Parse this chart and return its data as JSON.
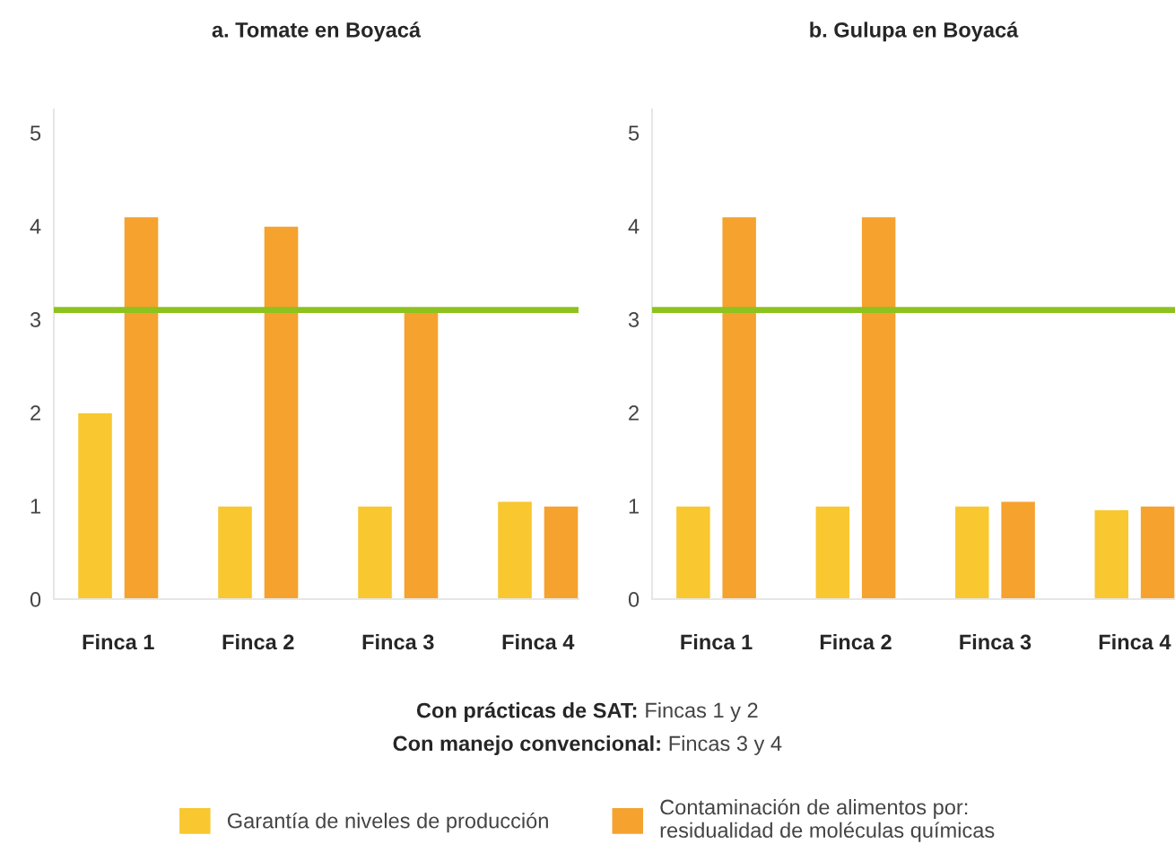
{
  "chart_data": [
    {
      "type": "bar",
      "title": "a. Tomate en Boyacá",
      "categories": [
        "Finca 1",
        "Finca 2",
        "Finca 3",
        "Finca 4"
      ],
      "series": [
        {
          "name": "Garantía de niveles de producción",
          "color": "#f9c72f",
          "values": [
            2.0,
            1.0,
            1.0,
            1.05
          ]
        },
        {
          "name": "Contaminación de alimentos por:\nresidualidad de moléculas químicas",
          "color": "#f5a22f",
          "values": [
            4.1,
            4.0,
            3.1,
            1.0
          ]
        }
      ],
      "ylim": [
        0,
        5.25
      ],
      "yticks": [
        0,
        1,
        2,
        3,
        4,
        5
      ],
      "grid": false,
      "legend": "bottom",
      "ref_lines": [
        {
          "axis": "y",
          "value": 3.1,
          "color": "#8dc21f"
        }
      ],
      "annotations": [
        "Con prácticas de SAT: Fincas 1 y 2",
        "Con manejo convencional: Fincas 3 y 4"
      ]
    },
    {
      "type": "bar",
      "title": "b. Gulupa en Boyacá",
      "categories": [
        "Finca 1",
        "Finca 2",
        "Finca 3",
        "Finca 4"
      ],
      "series": [
        {
          "color": "#f9c72f",
          "values": [
            1.0,
            1.0,
            1.0,
            0.96
          ]
        },
        {
          "color": "#f5a22f",
          "values": [
            4.1,
            4.1,
            1.05,
            1.0
          ]
        }
      ],
      "ylim": [
        0,
        5.25
      ],
      "yticks": [
        0,
        1,
        2,
        3,
        4,
        5
      ],
      "grid": false,
      "ref_lines": [
        {
          "axis": "y",
          "value": 3.1,
          "color": "#8dc21f"
        }
      ]
    }
  ]
}
